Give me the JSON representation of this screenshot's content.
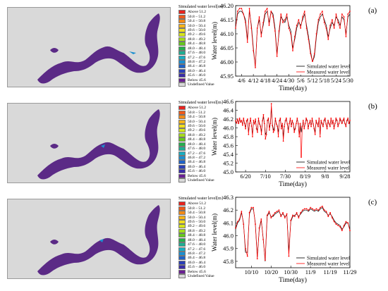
{
  "colors": {
    "map_background": "#d9d9d9",
    "river": "#5b2a86",
    "simulated_line": "#000000",
    "measured_line": "#ff0000"
  },
  "legend": {
    "title": "Simulated water level[m]",
    "entries": [
      {
        "label": "Above 51.2",
        "color": "#e8231f"
      },
      {
        "label": "50.8 – 51.2",
        "color": "#ee5a1b"
      },
      {
        "label": "50.4 – 50.8",
        "color": "#f28a16"
      },
      {
        "label": "50.0 – 50.4",
        "color": "#f6b41a"
      },
      {
        "label": "49.6 – 50.0",
        "color": "#f2df1e"
      },
      {
        "label": "49.2 – 49.6",
        "color": "#d6e61a"
      },
      {
        "label": "48.8 – 49.2",
        "color": "#a6dc1c"
      },
      {
        "label": "48.4 – 48.8",
        "color": "#66c81e"
      },
      {
        "label": "48.0 – 48.4",
        "color": "#26b04e"
      },
      {
        "label": "47.6 – 48.0",
        "color": "#1fae93"
      },
      {
        "label": "47.2 – 47.6",
        "color": "#1aaec2"
      },
      {
        "label": "46.8 – 47.2",
        "color": "#1c8fd0"
      },
      {
        "label": "46.4 – 46.8",
        "color": "#1f63c8"
      },
      {
        "label": "46.0 – 46.4",
        "color": "#2a3fb8"
      },
      {
        "label": "45.6 – 46.0",
        "color": "#3a2da8"
      },
      {
        "label": "Below 45.6",
        "color": "#6a1f94"
      },
      {
        "label": "Undefined Value",
        "color": "#d9d9d9"
      }
    ]
  },
  "chart_data": [
    {
      "type": "line",
      "panel_label": "(a)",
      "xlabel": "Time(day)",
      "ylabel": "Water level(m)",
      "ylim": [
        45.95,
        46.2
      ],
      "yticks": [
        45.95,
        46.0,
        46.05,
        46.1,
        46.15,
        46.2
      ],
      "xticks": [
        "4/6",
        "4/12",
        "4/18",
        "4/24",
        "4/30",
        "5/6",
        "5/12",
        "5/18",
        "5/24",
        "5/30"
      ],
      "x_index_range": [
        0,
        58
      ],
      "xtick_indices": [
        3,
        9,
        15,
        21,
        27,
        33,
        39,
        45,
        51,
        57
      ],
      "series": [
        {
          "name": "Simulated water level",
          "color": "#000000",
          "marker": false,
          "values": [
            46.12,
            46.17,
            46.18,
            46.18,
            46.17,
            46.15,
            46.08,
            46.18,
            46.13,
            46.05,
            45.98,
            46.12,
            46.15,
            46.1,
            46.13,
            46.17,
            46.18,
            46.14,
            46.18,
            46.17,
            46.12,
            46.03,
            46.1,
            46.16,
            46.15,
            46.14,
            46.16,
            46.13,
            46.11,
            46.05,
            46.08,
            46.12,
            46.14,
            46.13,
            46.15,
            46.17,
            46.13,
            46.09,
            46.04,
            46.0,
            46.02,
            46.09,
            46.14,
            46.16,
            46.17,
            46.15,
            46.13,
            46.09,
            46.12,
            46.14,
            46.13,
            46.16,
            46.15,
            46.13,
            46.16,
            46.15,
            46.1,
            46.16,
            46.17
          ]
        },
        {
          "name": "Measured water level",
          "color": "#ff0000",
          "marker": true,
          "values": [
            46.12,
            46.18,
            46.19,
            46.19,
            46.17,
            46.14,
            46.07,
            46.19,
            46.12,
            46.04,
            45.98,
            46.12,
            46.16,
            46.09,
            46.14,
            46.18,
            46.19,
            46.13,
            46.18,
            46.16,
            46.11,
            46.02,
            46.11,
            46.17,
            46.14,
            46.15,
            46.17,
            46.12,
            46.1,
            46.04,
            46.09,
            46.13,
            46.15,
            46.12,
            46.16,
            46.18,
            46.12,
            46.08,
            46.03,
            46.0,
            46.03,
            46.1,
            46.15,
            46.17,
            46.18,
            46.14,
            46.12,
            46.08,
            46.13,
            46.15,
            46.12,
            46.17,
            46.14,
            46.12,
            46.17,
            46.16,
            46.09,
            46.17,
            46.18
          ]
        }
      ]
    },
    {
      "type": "line",
      "panel_label": "(b)",
      "xlabel": "Time(day)",
      "ylabel": "Water level(m)",
      "ylim": [
        45.0,
        46.6
      ],
      "yticks": [
        45.0,
        45.2,
        45.4,
        45.6,
        45.8,
        46.0,
        46.2,
        46.4,
        46.6
      ],
      "xticks": [
        "6/20",
        "7/10",
        "7/30",
        "8/19",
        "9/8",
        "9/28"
      ],
      "x_index_range": [
        0,
        115
      ],
      "xtick_indices": [
        10,
        30,
        50,
        70,
        90,
        110
      ],
      "series": [
        {
          "name": "Simulated water level",
          "color": "#000000",
          "marker": false,
          "values": [
            46.15,
            46.12,
            46.18,
            46.1,
            46.2,
            46.14,
            46.16,
            46.08,
            46.2,
            46.12,
            46.0,
            46.15,
            46.18,
            45.9,
            46.1,
            46.2,
            46.05,
            45.85,
            46.15,
            46.1,
            46.18,
            46.0,
            45.95,
            46.2,
            46.1,
            46.05,
            45.9,
            46.15,
            46.25,
            46.1,
            45.85,
            45.9,
            46.15,
            46.2,
            46.0,
            46.1,
            46.45,
            46.1,
            45.95,
            46.0,
            46.2,
            46.1,
            46.05,
            45.9,
            46.15,
            46.2,
            46.0,
            46.1,
            45.8,
            46.05,
            46.15,
            46.2,
            46.1,
            45.95,
            46.1,
            46.2,
            46.05,
            46.15,
            46.1,
            45.95,
            46.0,
            46.1,
            46.2,
            46.1,
            45.85,
            46.1,
            45.9,
            46.05,
            46.15,
            46.0,
            46.1,
            46.2,
            46.15,
            46.0,
            46.1,
            46.15,
            46.05,
            46.2,
            46.1,
            46.0,
            45.9,
            46.15,
            46.1,
            46.05,
            46.2,
            45.85,
            46.15,
            46.1,
            46.05,
            46.15,
            46.2,
            46.1,
            46.0,
            46.15,
            46.1,
            46.05,
            46.2,
            46.1,
            46.15,
            46.0,
            46.1,
            46.2,
            46.15,
            46.05,
            46.1,
            46.2,
            46.15,
            46.1,
            46.15,
            46.2,
            46.1,
            46.05,
            46.15,
            46.2,
            46.1,
            46.15
          ]
        },
        {
          "name": "Measured water level",
          "color": "#ff0000",
          "marker": true,
          "values": [
            46.16,
            46.11,
            46.2,
            46.1,
            46.22,
            46.13,
            46.17,
            46.06,
            46.22,
            46.1,
            45.98,
            46.16,
            46.2,
            45.85,
            46.1,
            46.22,
            46.04,
            45.8,
            46.17,
            46.09,
            46.2,
            45.98,
            45.9,
            46.22,
            46.09,
            46.03,
            45.85,
            46.16,
            46.3,
            46.1,
            45.75,
            45.85,
            46.17,
            46.22,
            45.95,
            46.1,
            46.55,
            46.05,
            45.9,
            45.95,
            46.22,
            46.09,
            46.03,
            45.8,
            46.16,
            46.22,
            45.98,
            46.1,
            45.7,
            46.03,
            46.16,
            46.22,
            46.09,
            45.9,
            46.1,
            46.22,
            46.03,
            46.17,
            46.09,
            45.9,
            45.98,
            46.1,
            46.22,
            46.09,
            45.8,
            46.1,
            45.1,
            46.03,
            46.17,
            45.98,
            46.1,
            46.22,
            46.17,
            45.98,
            46.1,
            46.17,
            46.03,
            46.22,
            46.09,
            45.98,
            45.85,
            46.17,
            46.1,
            46.03,
            46.22,
            45.8,
            46.17,
            46.1,
            46.03,
            46.17,
            46.22,
            46.09,
            45.98,
            46.17,
            46.1,
            46.03,
            46.22,
            46.09,
            46.17,
            45.98,
            46.1,
            46.22,
            46.17,
            46.03,
            46.1,
            46.22,
            46.17,
            46.1,
            46.17,
            46.22,
            46.1,
            46.03,
            46.17,
            46.22,
            46.1,
            46.17
          ]
        }
      ]
    },
    {
      "type": "line",
      "panel_label": "(c)",
      "xlabel": "Time(day)",
      "ylabel": "Water level(m)",
      "ylim": [
        45.75,
        46.3
      ],
      "yticks": [
        45.8,
        45.9,
        46.0,
        46.1,
        46.2,
        46.3
      ],
      "xticks": [
        "10/10",
        "10/20",
        "10/30",
        "11/9",
        "11/19",
        "11/29"
      ],
      "x_index_range": [
        0,
        58
      ],
      "xtick_indices": [
        8,
        18,
        28,
        38,
        48,
        58
      ],
      "series": [
        {
          "name": "Simulated water level",
          "color": "#000000",
          "marker": false,
          "values": [
            46.05,
            46.1,
            46.12,
            46.18,
            46.1,
            45.87,
            45.87,
            46.17,
            46.21,
            46.21,
            46.1,
            45.83,
            46.05,
            46.12,
            45.98,
            45.8,
            46.15,
            46.18,
            46.15,
            46.15,
            46.17,
            46.18,
            46.19,
            46.16,
            46.17,
            46.15,
            46.16,
            45.88,
            46.11,
            46.15,
            46.16,
            46.17,
            46.15,
            46.17,
            46.19,
            46.2,
            46.2,
            46.19,
            46.21,
            46.2,
            46.19,
            46.2,
            46.19,
            46.21,
            46.22,
            46.19,
            46.18,
            46.16,
            46.17,
            46.15,
            46.12,
            46.1,
            46.09,
            46.08,
            46.05,
            46.07,
            46.1,
            46.1,
            46.05
          ]
        },
        {
          "name": "Measured water level",
          "color": "#ff0000",
          "marker": true,
          "values": [
            46.06,
            46.11,
            46.13,
            46.19,
            46.09,
            45.9,
            45.84,
            46.18,
            46.22,
            46.22,
            46.09,
            45.82,
            46.06,
            46.13,
            45.97,
            45.81,
            46.16,
            46.19,
            46.14,
            46.16,
            46.18,
            46.19,
            46.2,
            46.15,
            46.18,
            46.14,
            46.17,
            45.84,
            46.12,
            46.16,
            46.15,
            46.18,
            46.14,
            46.18,
            46.2,
            46.21,
            46.21,
            46.2,
            46.22,
            46.21,
            46.2,
            46.21,
            46.2,
            46.22,
            46.23,
            46.2,
            46.19,
            46.15,
            46.18,
            46.14,
            46.11,
            46.09,
            46.08,
            46.07,
            46.04,
            46.08,
            46.11,
            46.1,
            46.04
          ]
        }
      ]
    }
  ]
}
